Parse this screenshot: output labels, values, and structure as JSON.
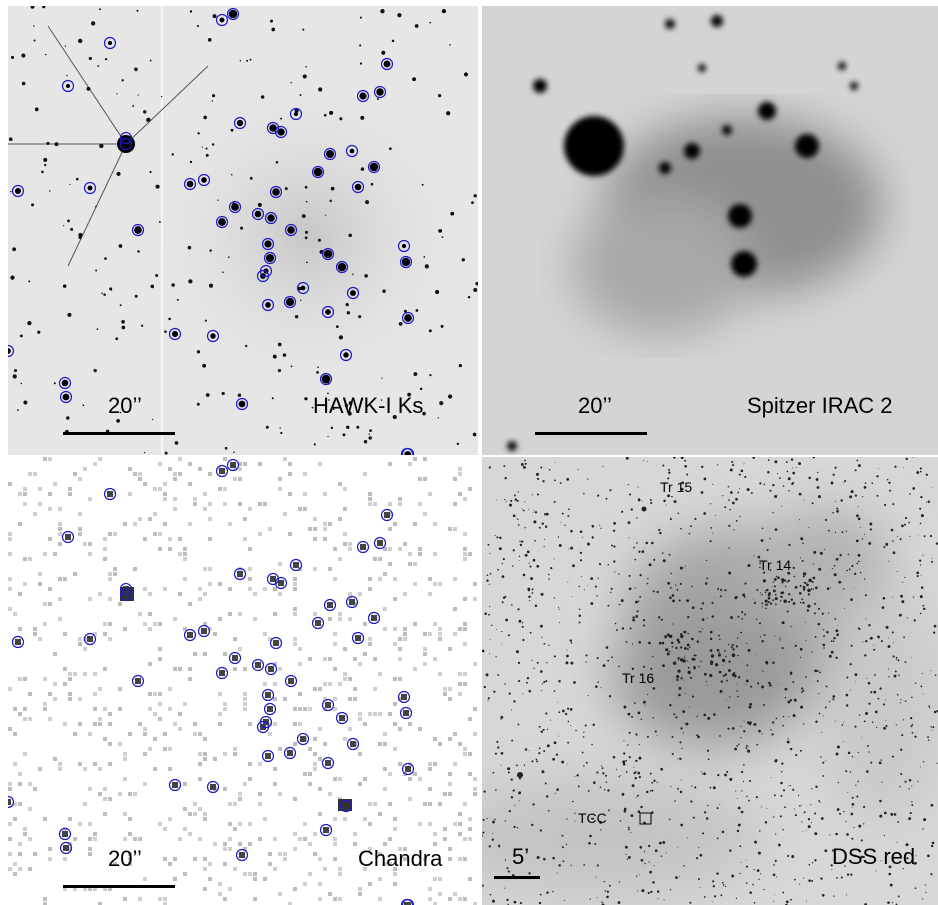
{
  "panels": {
    "hawk": {
      "name": "HAWK-I  Ks",
      "scale": "20’’"
    },
    "irac": {
      "name": "Spitzer IRAC 2",
      "scale": "20’’"
    },
    "chandra": {
      "name": "Chandra",
      "scale": "20’’"
    },
    "dss": {
      "name": "DSS red",
      "scale": "5’",
      "labels": {
        "tr15": "Tr 15",
        "tr14": "Tr 14",
        "tr16": "Tr 16",
        "tcc": "TCC"
      }
    }
  },
  "colors": {
    "circle": "#1a1acc",
    "star": "#000000"
  }
}
